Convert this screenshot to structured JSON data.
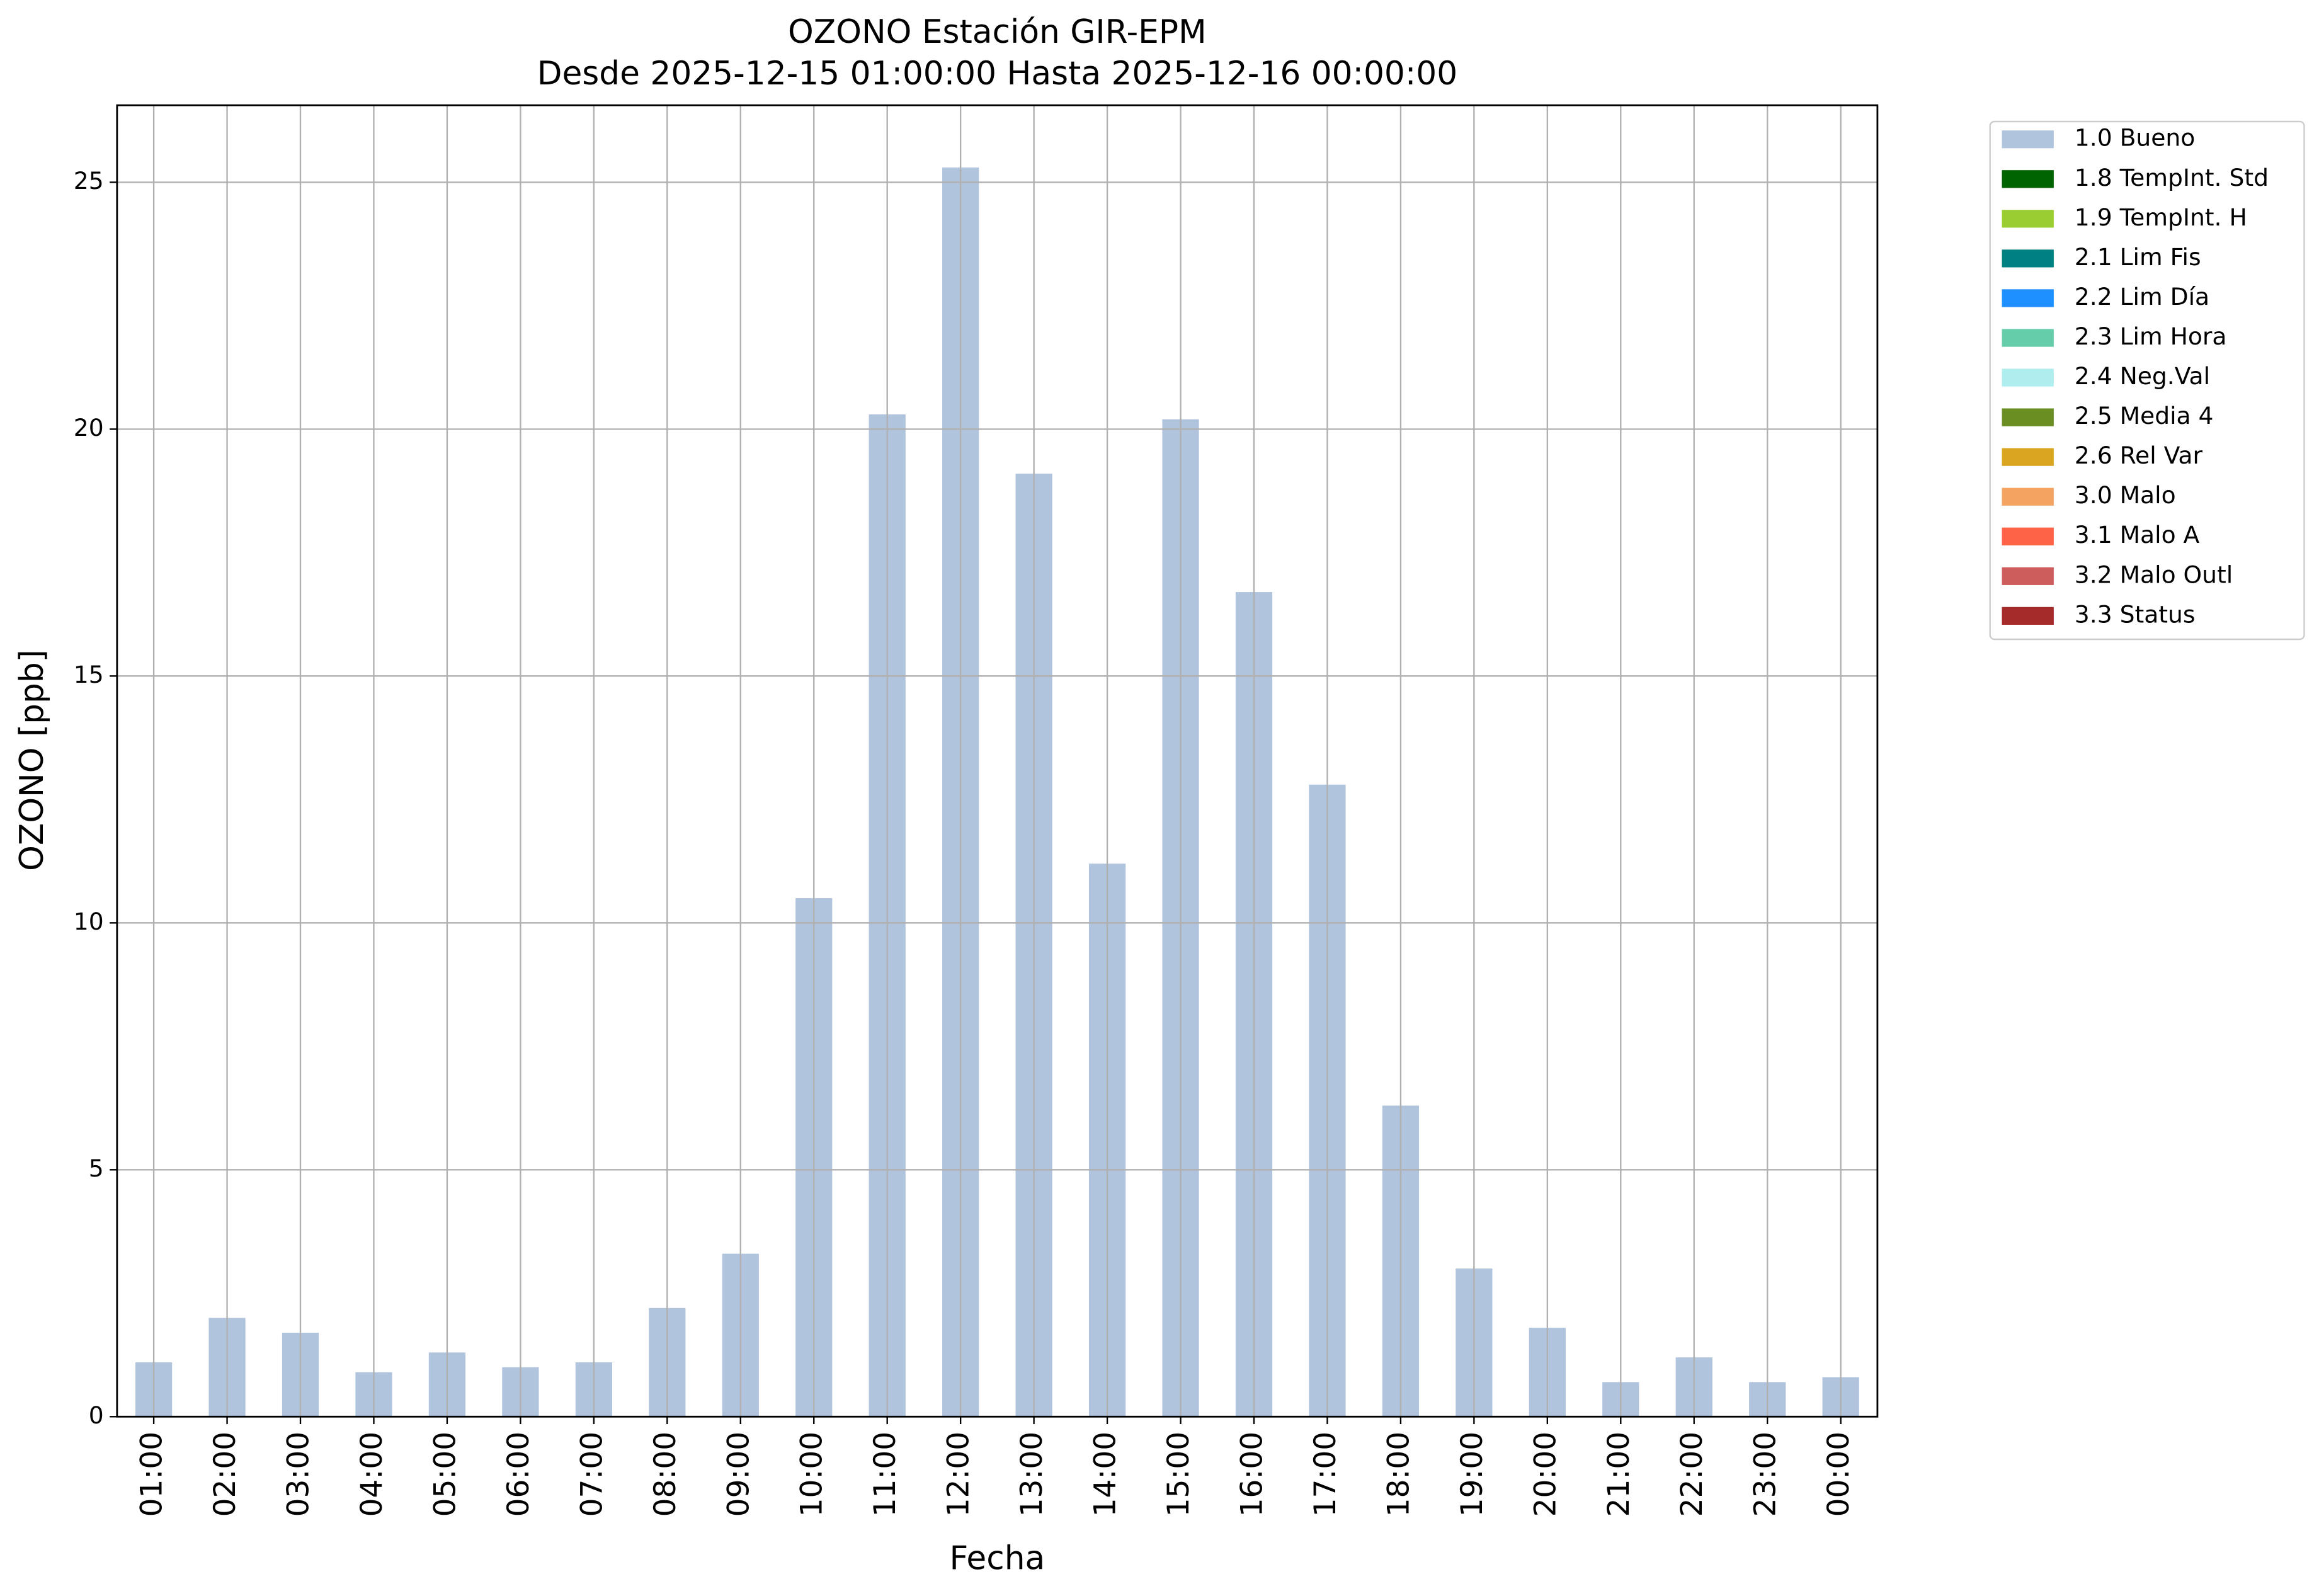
{
  "chart_data": {
    "type": "bar",
    "title": "OZONO Estación GIR-EPM",
    "subtitle": "Desde 2025-12-15 01:00:00 Hasta 2025-12-16 00:00:00",
    "x_label": "Fecha",
    "y_label": "OZONO [ppb]",
    "categories": [
      "01:00",
      "02:00",
      "03:00",
      "04:00",
      "05:00",
      "06:00",
      "07:00",
      "08:00",
      "09:00",
      "10:00",
      "11:00",
      "12:00",
      "13:00",
      "14:00",
      "15:00",
      "16:00",
      "17:00",
      "18:00",
      "19:00",
      "20:00",
      "21:00",
      "22:00",
      "23:00",
      "00:00"
    ],
    "series": [
      {
        "name": "1.0 Bueno",
        "color": "#b0c4de",
        "values": [
          1.1,
          2.0,
          1.7,
          0.9,
          1.3,
          1.0,
          1.1,
          2.2,
          3.3,
          10.5,
          20.3,
          25.3,
          19.1,
          11.2,
          20.2,
          16.7,
          12.8,
          6.3,
          3.0,
          1.8,
          0.7,
          1.2,
          0.7,
          0.8
        ]
      },
      {
        "name": "1.8 TempInt. Std",
        "color": "#006400",
        "values": [
          null,
          null,
          null,
          null,
          null,
          null,
          null,
          null,
          null,
          null,
          null,
          null,
          null,
          null,
          null,
          null,
          null,
          null,
          null,
          null,
          null,
          null,
          null,
          null
        ]
      },
      {
        "name": "1.9 TempInt. H",
        "color": "#9acd32",
        "values": [
          null,
          null,
          null,
          null,
          null,
          null,
          null,
          null,
          null,
          null,
          null,
          null,
          null,
          null,
          null,
          null,
          null,
          null,
          null,
          null,
          null,
          null,
          null,
          null
        ]
      },
      {
        "name": "2.1 Lim Fis",
        "color": "#008080",
        "values": [
          null,
          null,
          null,
          null,
          null,
          null,
          null,
          null,
          null,
          null,
          null,
          null,
          null,
          null,
          null,
          null,
          null,
          null,
          null,
          null,
          null,
          null,
          null,
          null
        ]
      },
      {
        "name": "2.2 Lim Día",
        "color": "#1e90ff",
        "values": [
          null,
          null,
          null,
          null,
          null,
          null,
          null,
          null,
          null,
          null,
          null,
          null,
          null,
          null,
          null,
          null,
          null,
          null,
          null,
          null,
          null,
          null,
          null,
          null
        ]
      },
      {
        "name": "2.3 Lim Hora",
        "color": "#66cdaa",
        "values": [
          null,
          null,
          null,
          null,
          null,
          null,
          null,
          null,
          null,
          null,
          null,
          null,
          null,
          null,
          null,
          null,
          null,
          null,
          null,
          null,
          null,
          null,
          null,
          null
        ]
      },
      {
        "name": "2.4 Neg.Val",
        "color": "#afeeee",
        "values": [
          null,
          null,
          null,
          null,
          null,
          null,
          null,
          null,
          null,
          null,
          null,
          null,
          null,
          null,
          null,
          null,
          null,
          null,
          null,
          null,
          null,
          null,
          null,
          null
        ]
      },
      {
        "name": "2.5 Media 4",
        "color": "#6b8e23",
        "values": [
          null,
          null,
          null,
          null,
          null,
          null,
          null,
          null,
          null,
          null,
          null,
          null,
          null,
          null,
          null,
          null,
          null,
          null,
          null,
          null,
          null,
          null,
          null,
          null
        ]
      },
      {
        "name": "2.6 Rel Var",
        "color": "#daa520",
        "values": [
          null,
          null,
          null,
          null,
          null,
          null,
          null,
          null,
          null,
          null,
          null,
          null,
          null,
          null,
          null,
          null,
          null,
          null,
          null,
          null,
          null,
          null,
          null,
          null
        ]
      },
      {
        "name": "3.0 Malo",
        "color": "#f4a460",
        "values": [
          null,
          null,
          null,
          null,
          null,
          null,
          null,
          null,
          null,
          null,
          null,
          null,
          null,
          null,
          null,
          null,
          null,
          null,
          null,
          null,
          null,
          null,
          null,
          null
        ]
      },
      {
        "name": "3.1 Malo A",
        "color": "#ff6347",
        "values": [
          null,
          null,
          null,
          null,
          null,
          null,
          null,
          null,
          null,
          null,
          null,
          null,
          null,
          null,
          null,
          null,
          null,
          null,
          null,
          null,
          null,
          null,
          null,
          null
        ]
      },
      {
        "name": "3.2 Malo Outl",
        "color": "#cd5c5c",
        "values": [
          null,
          null,
          null,
          null,
          null,
          null,
          null,
          null,
          null,
          null,
          null,
          null,
          null,
          null,
          null,
          null,
          null,
          null,
          null,
          null,
          null,
          null,
          null,
          null
        ]
      },
      {
        "name": "3.3 Status",
        "color": "#a52a2a",
        "values": [
          null,
          null,
          null,
          null,
          null,
          null,
          null,
          null,
          null,
          null,
          null,
          null,
          null,
          null,
          null,
          null,
          null,
          null,
          null,
          null,
          null,
          null,
          null,
          null
        ]
      }
    ],
    "stacked": true,
    "ylim": [
      0,
      26.56
    ],
    "yticks": [
      0,
      5,
      10,
      15,
      20,
      25
    ],
    "grid": true,
    "legend_position": "outside-upper-right"
  }
}
